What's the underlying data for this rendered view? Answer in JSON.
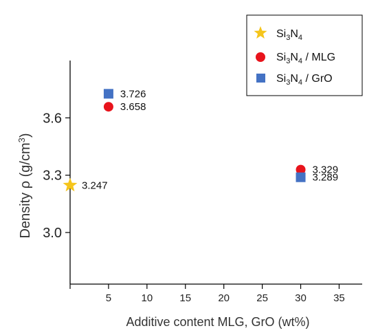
{
  "chart_data": {
    "type": "scatter",
    "xlabel": "Additive content MLG, GrO (wt%)",
    "ylabel": "Density ρ (g/cm³)",
    "ylabel_parts": {
      "before": "Density ",
      "rho": "ρ",
      "unit_open": " (g/cm",
      "sup": "3",
      "unit_close": ")"
    },
    "xlim": [
      0,
      38
    ],
    "ylim": [
      2.73,
      3.9
    ],
    "xticks": [
      5,
      10,
      15,
      20,
      25,
      30,
      35
    ],
    "yticks": [
      3.0,
      3.3,
      3.6
    ],
    "ytick_labels": [
      "3.0",
      "3.3",
      "3.6"
    ],
    "series": [
      {
        "legend_parts": {
          "si": "Si",
          "sub1": "3",
          "n": "N",
          "sub2": "4",
          "suffix": ""
        },
        "marker": "star",
        "color": "#f5c51c",
        "points": [
          {
            "x": 0,
            "y": 3.247,
            "label": "3.247"
          }
        ]
      },
      {
        "legend_parts": {
          "si": "Si",
          "sub1": "3",
          "n": "N",
          "sub2": "4",
          "suffix": " / MLG"
        },
        "marker": "circle",
        "color": "#e8141c",
        "points": [
          {
            "x": 5,
            "y": 3.658,
            "label": "3.658"
          },
          {
            "x": 30,
            "y": 3.329,
            "label": "3.329"
          }
        ]
      },
      {
        "legend_parts": {
          "si": "Si",
          "sub1": "3",
          "n": "N",
          "sub2": "4",
          "suffix": " / GrO"
        },
        "marker": "square",
        "color": "#4472c4",
        "points": [
          {
            "x": 5,
            "y": 3.726,
            "label": "3.726"
          },
          {
            "x": 30,
            "y": 3.289,
            "label": "3.289"
          }
        ]
      }
    ],
    "legend_position": "top-right",
    "grid": false
  }
}
